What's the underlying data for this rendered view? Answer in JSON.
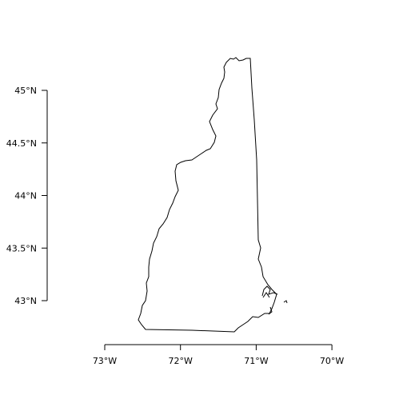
{
  "map": {
    "region": "New Hampshire",
    "outline_color": "#000000",
    "background": "#ffffff",
    "lon_range": [
      -73,
      -70
    ],
    "lat_range": [
      42.6,
      45.4
    ],
    "x_ticks": [
      {
        "value": -73,
        "label": "73°W"
      },
      {
        "value": -72,
        "label": "72°W"
      },
      {
        "value": -71,
        "label": "71°W"
      },
      {
        "value": -70,
        "label": "70°W"
      }
    ],
    "y_ticks": [
      {
        "value": 45,
        "label": "45°N"
      },
      {
        "value": 44.5,
        "label": "44.5°N"
      },
      {
        "value": 44,
        "label": "44°N"
      },
      {
        "value": 43.5,
        "label": "43.5°N"
      },
      {
        "value": 43,
        "label": "43°N"
      }
    ]
  }
}
